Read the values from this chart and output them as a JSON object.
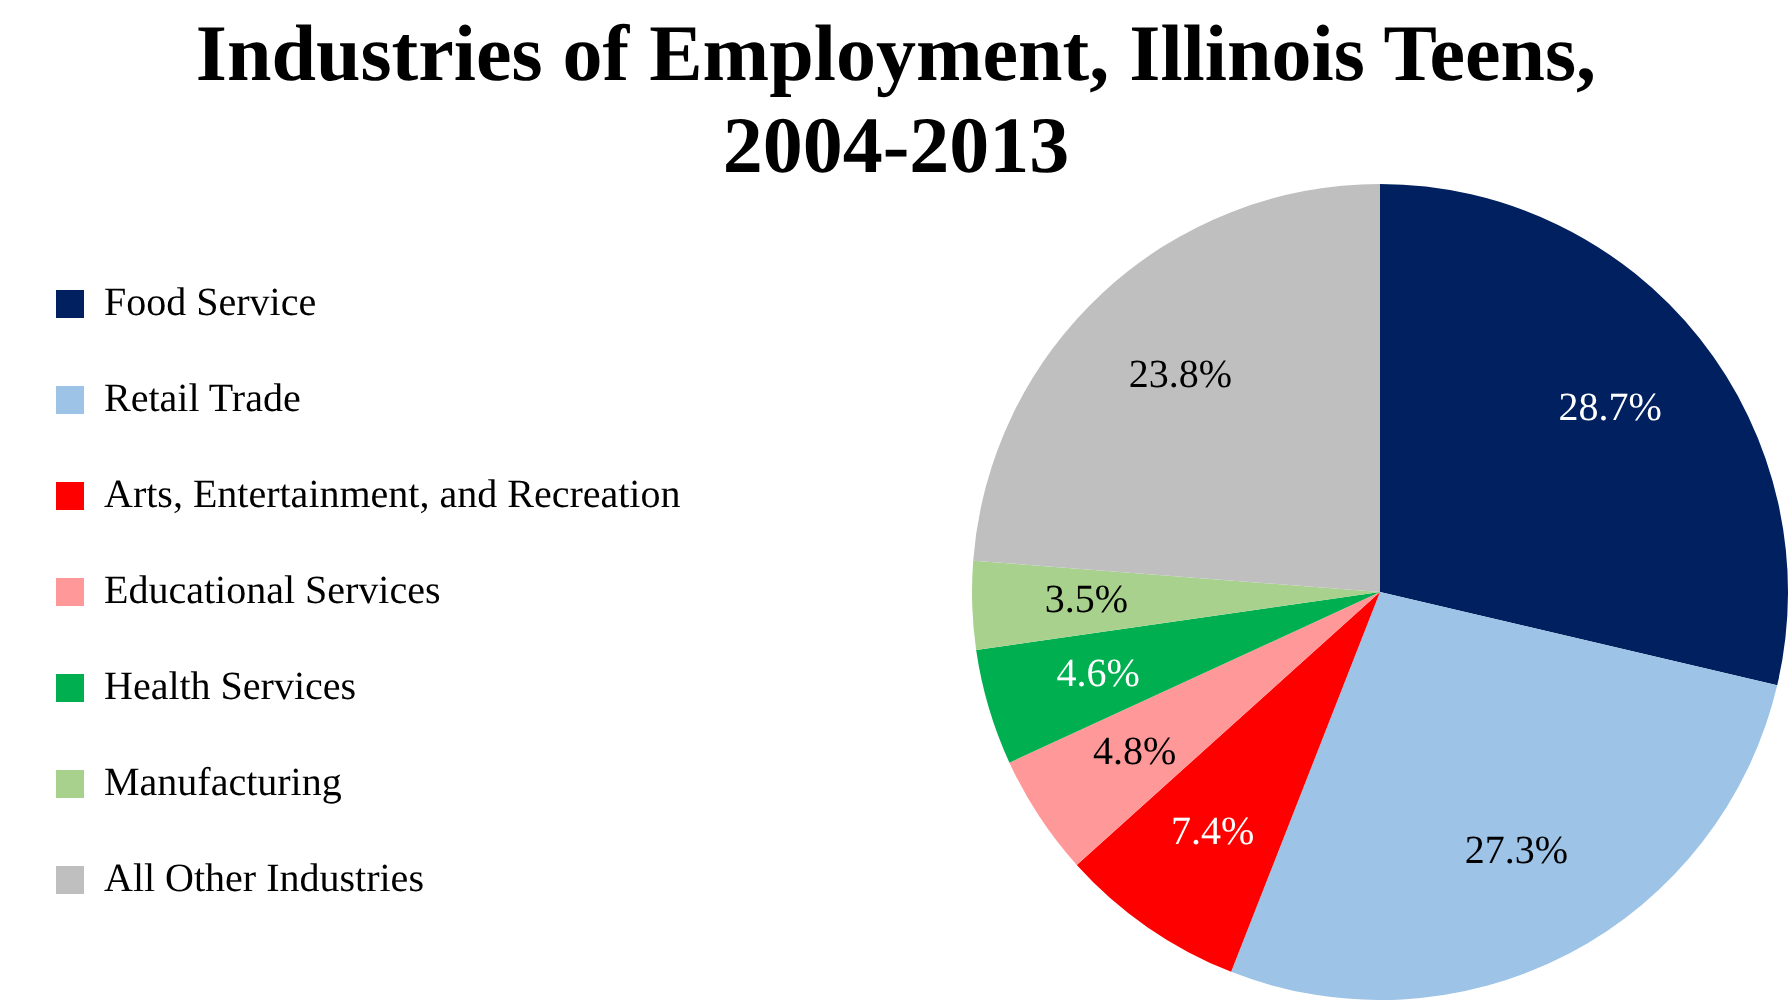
{
  "chart_data": {
    "type": "pie",
    "title": "Industries of Employment, Illinois Teens, 2004-2013",
    "categories": [
      "Food Service",
      "Retail Trade",
      "Arts, Entertainment, and Recreation",
      "Educational Services",
      "Health Services",
      "Manufacturing",
      "All Other Industries"
    ],
    "values": [
      28.7,
      27.3,
      7.4,
      4.8,
      4.6,
      3.5,
      23.8
    ],
    "value_labels": [
      "28.7%",
      "27.3%",
      "7.4%",
      "4.8%",
      "4.6%",
      "3.5%",
      "23.8%"
    ],
    "colors": [
      "#002060",
      "#9dc3e6",
      "#ff0000",
      "#ff9999",
      "#00b050",
      "#a9d18e",
      "#bfbfbf"
    ],
    "legend": "left"
  }
}
